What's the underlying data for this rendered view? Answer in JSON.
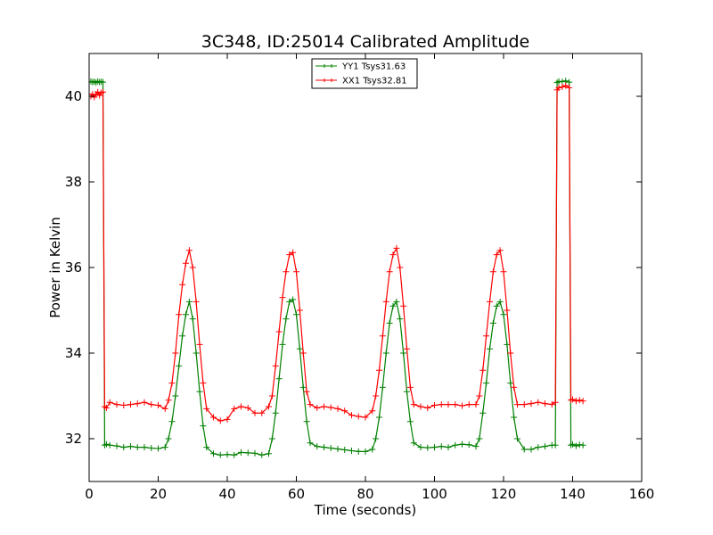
{
  "chart_data": {
    "type": "line",
    "title": "3C348, ID:25014 Calibrated Amplitude",
    "xlabel": "Time (seconds)",
    "ylabel": "Power in Kelvin",
    "xlim": [
      0,
      160
    ],
    "ylim": [
      31,
      41
    ],
    "x_ticks": [
      0,
      20,
      40,
      60,
      80,
      100,
      120,
      140,
      160
    ],
    "y_ticks": [
      32,
      34,
      36,
      38,
      40
    ],
    "legend_position": "top-center",
    "grid": false,
    "series": [
      {
        "name": "YY1 Tsys31.63",
        "color": "#008000",
        "marker": "+",
        "x": [
          0.5,
          1,
          1.5,
          2,
          2.5,
          3,
          3.5,
          4,
          4.5,
          5,
          6,
          8,
          10,
          12,
          14,
          16,
          18,
          20,
          22,
          23,
          24,
          25,
          26,
          27,
          28,
          29,
          30,
          31,
          32,
          33,
          34,
          36,
          38,
          40,
          42,
          44,
          46,
          48,
          50,
          52,
          53,
          54,
          55,
          56,
          57,
          58,
          59,
          60,
          61,
          62,
          63,
          64,
          66,
          68,
          70,
          72,
          74,
          76,
          78,
          80,
          82,
          83,
          84,
          85,
          86,
          87,
          88,
          89,
          90,
          91,
          92,
          93,
          94,
          96,
          98,
          100,
          102,
          104,
          106,
          108,
          110,
          112,
          113,
          114,
          115,
          116,
          117,
          118,
          119,
          120,
          121,
          122,
          123,
          124,
          126,
          128,
          130,
          132,
          134,
          135,
          135.5,
          136,
          137,
          138,
          139,
          139.5,
          140,
          141,
          142,
          143
        ],
        "y": [
          40.35,
          40.33,
          40.34,
          40.32,
          40.35,
          40.33,
          40.34,
          40.33,
          31.85,
          31.87,
          31.85,
          31.83,
          31.8,
          31.82,
          31.8,
          31.8,
          31.78,
          31.77,
          31.8,
          32.0,
          32.4,
          33.0,
          33.7,
          34.4,
          34.9,
          35.2,
          34.8,
          34.0,
          33.1,
          32.3,
          31.8,
          31.65,
          31.62,
          31.63,
          31.62,
          31.68,
          31.67,
          31.66,
          31.62,
          31.65,
          32.0,
          32.6,
          33.4,
          34.2,
          34.8,
          35.2,
          35.25,
          34.9,
          34.1,
          33.2,
          32.4,
          31.9,
          31.82,
          31.8,
          31.78,
          31.76,
          31.74,
          31.72,
          31.7,
          31.7,
          31.75,
          32.0,
          32.5,
          33.2,
          34.0,
          34.7,
          35.1,
          35.2,
          34.8,
          34.0,
          33.1,
          32.4,
          31.9,
          31.8,
          31.79,
          31.8,
          31.82,
          31.8,
          31.85,
          31.87,
          31.86,
          31.82,
          32.0,
          32.6,
          33.3,
          34.1,
          34.7,
          35.1,
          35.2,
          34.9,
          34.2,
          33.3,
          32.5,
          32.0,
          31.75,
          31.75,
          31.8,
          31.82,
          31.85,
          31.85,
          40.32,
          40.35,
          40.34,
          40.36,
          40.33,
          31.85,
          31.87,
          31.83,
          31.86,
          31.85
        ]
      },
      {
        "name": "XX1 Tsys32.81",
        "color": "#ff0000",
        "marker": "+",
        "x": [
          0.5,
          1,
          1.5,
          2,
          2.5,
          3,
          3.5,
          4,
          4.5,
          5,
          6,
          8,
          10,
          12,
          14,
          16,
          18,
          20,
          22,
          23,
          24,
          25,
          26,
          27,
          28,
          29,
          30,
          31,
          32,
          33,
          34,
          36,
          38,
          40,
          42,
          44,
          46,
          48,
          50,
          52,
          53,
          54,
          55,
          56,
          57,
          58,
          59,
          60,
          61,
          62,
          63,
          64,
          66,
          68,
          70,
          72,
          74,
          76,
          78,
          80,
          82,
          83,
          84,
          85,
          86,
          87,
          88,
          89,
          90,
          91,
          92,
          93,
          94,
          96,
          98,
          100,
          102,
          104,
          106,
          108,
          110,
          112,
          113,
          114,
          115,
          116,
          117,
          118,
          119,
          120,
          121,
          122,
          123,
          124,
          126,
          128,
          130,
          132,
          134,
          135,
          135.5,
          136,
          137,
          138,
          139,
          139.5,
          140,
          141,
          142,
          143
        ],
        "y": [
          40.0,
          40.05,
          39.98,
          40.05,
          40.1,
          40.02,
          40.08,
          40.1,
          32.75,
          32.72,
          32.85,
          32.8,
          32.78,
          32.8,
          32.82,
          32.85,
          32.8,
          32.78,
          32.7,
          32.9,
          33.3,
          34.0,
          34.9,
          35.6,
          36.1,
          36.4,
          36.0,
          35.2,
          34.2,
          33.3,
          32.7,
          32.5,
          32.42,
          32.45,
          32.7,
          32.75,
          32.72,
          32.6,
          32.6,
          32.75,
          33.0,
          33.7,
          34.5,
          35.3,
          35.9,
          36.3,
          36.35,
          35.9,
          35.0,
          34.0,
          33.1,
          32.8,
          32.72,
          32.75,
          32.73,
          32.7,
          32.65,
          32.55,
          32.52,
          32.5,
          32.65,
          33.0,
          33.6,
          34.4,
          35.2,
          35.9,
          36.3,
          36.45,
          36.0,
          35.1,
          34.1,
          33.2,
          32.8,
          32.75,
          32.72,
          32.78,
          32.8,
          32.8,
          32.8,
          32.77,
          32.8,
          32.8,
          33.0,
          33.6,
          34.4,
          35.2,
          35.9,
          36.3,
          36.4,
          35.9,
          35.0,
          34.0,
          33.2,
          32.8,
          32.8,
          32.82,
          32.85,
          32.82,
          32.8,
          32.85,
          40.15,
          40.2,
          40.22,
          40.25,
          40.2,
          32.9,
          32.92,
          32.88,
          32.9,
          32.88
        ]
      }
    ]
  }
}
